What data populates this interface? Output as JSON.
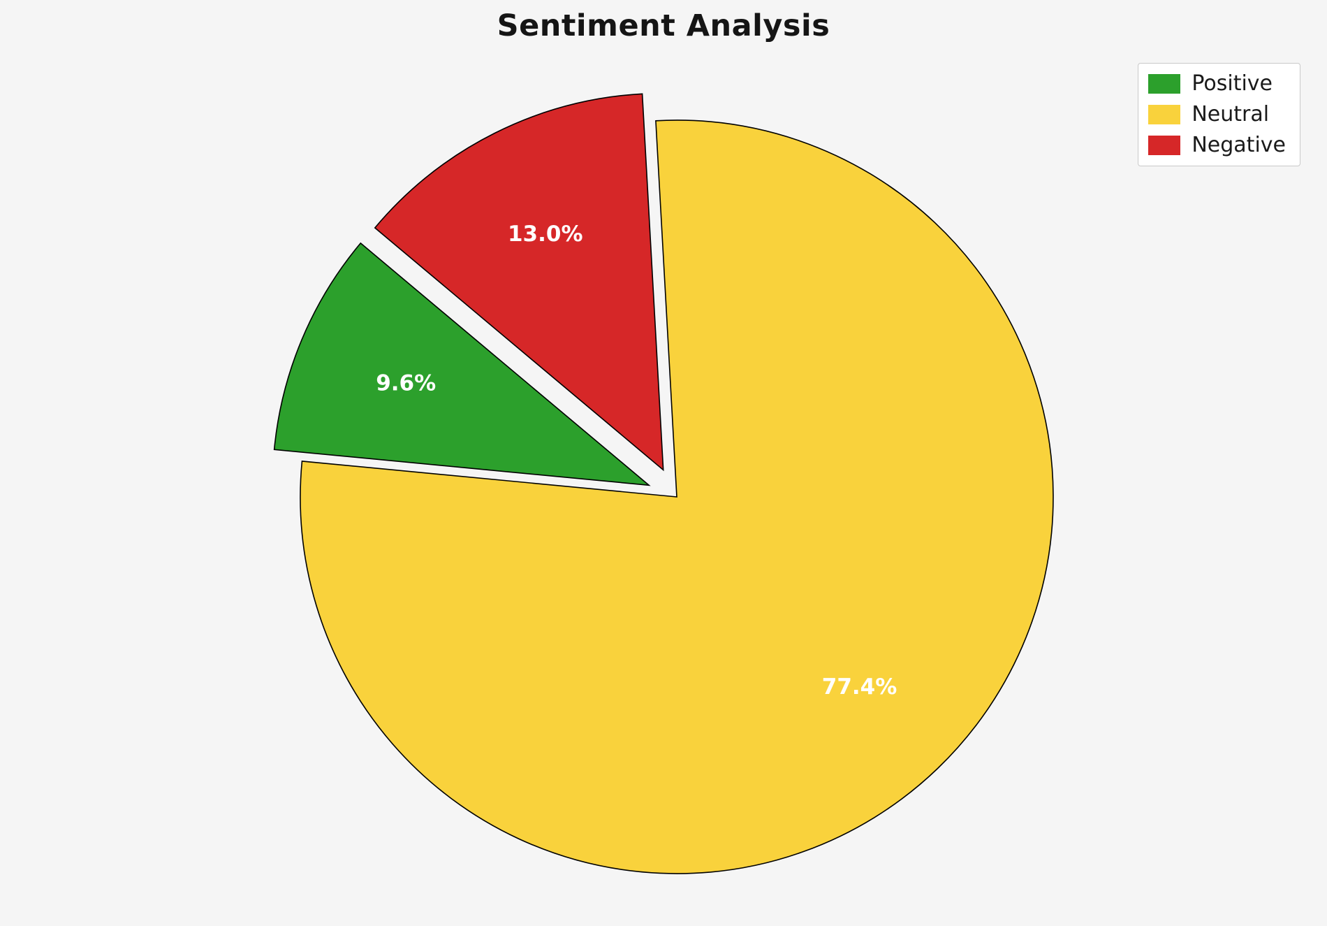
{
  "chart_data": {
    "type": "pie",
    "title": "Sentiment Analysis",
    "categories": [
      "Positive",
      "Neutral",
      "Negative"
    ],
    "values": [
      9.6,
      77.4,
      13.0
    ],
    "labels": [
      "9.6%",
      "77.4%",
      "13.0%"
    ],
    "colors": [
      "#2ca02c",
      "#f9d23c",
      "#d62728"
    ],
    "start_angle": 140,
    "direction": "counterclockwise",
    "explode": [
      0.08,
      0,
      0.08
    ],
    "slice_edge_color": "#000000",
    "label_color": "#ffffff",
    "legend_position": "upper right",
    "background": "#f5f5f5"
  }
}
